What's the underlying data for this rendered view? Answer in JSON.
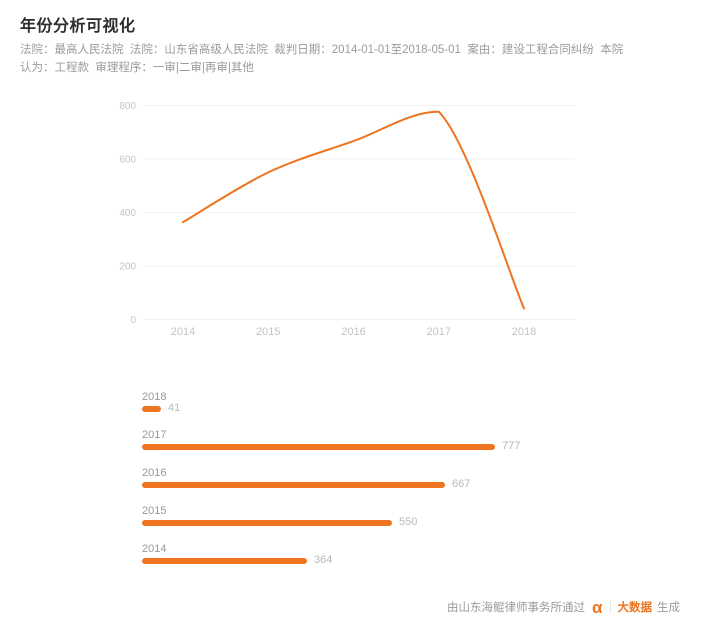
{
  "page": {
    "title": "年份分析可视化",
    "meta": "法院：最高人民法院  法院：山东省高级人民法院  裁判日期：2014-01-01至2018-05-01  案由：建设工程合同纠纷  本院认为：工程款  审理程序：一审|二审|再审|其他"
  },
  "colors": {
    "accent_orange": "#ED7420",
    "grid_line": "#f0f0f0",
    "axis_text": "#c4c4c4",
    "meta_text": "#9b9b9b",
    "bar_label": "#999999",
    "bar_value": "#b9b9b9"
  },
  "chart_data": [
    {
      "type": "line",
      "x": [
        "2014",
        "2015",
        "2016",
        "2017",
        "2018"
      ],
      "values": [
        364,
        550,
        667,
        777,
        41
      ],
      "ylim": [
        0,
        800
      ],
      "y_ticks": [
        0,
        200,
        400,
        600,
        800
      ],
      "grid": true,
      "smooth": true,
      "legend": "none",
      "line_color": "#ED7420"
    },
    {
      "type": "bar",
      "orientation": "horizontal",
      "categories": [
        "2018",
        "2017",
        "2016",
        "2015",
        "2014"
      ],
      "values": [
        41,
        777,
        667,
        550,
        364
      ],
      "max_value": 777,
      "bar_color": "#ED7420"
    }
  ],
  "footer": {
    "prefix": "由山东海鲲律师事务所通过",
    "alpha": "α",
    "brand": "大数据",
    "suffix": "生成"
  }
}
